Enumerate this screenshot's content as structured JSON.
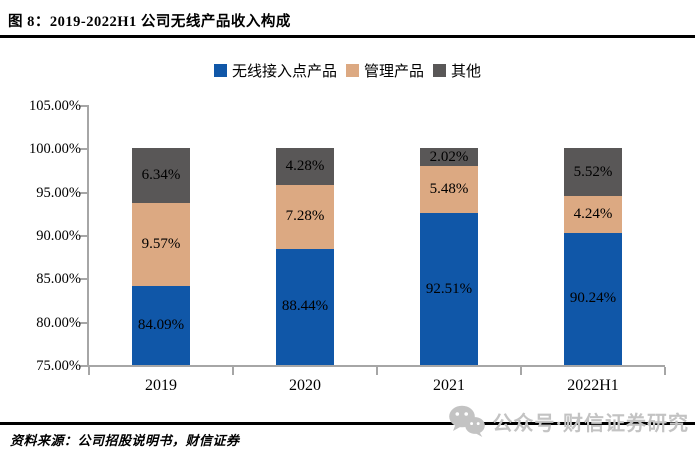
{
  "figure": {
    "title": "图 8：2019-2022H1 公司无线产品收入构成",
    "source": "资料来源：公司招股说明书，财信证券",
    "watermark": {
      "icon": "wechat-icon",
      "text": "公众号·财信证券研究",
      "color": "#c3c3c3"
    }
  },
  "chart_data": {
    "type": "bar",
    "stacked": true,
    "title": "2019-2022H1 公司无线产品收入构成",
    "categories": [
      "2019",
      "2020",
      "2021",
      "2022H1"
    ],
    "series": [
      {
        "name": "无线接入点产品",
        "color": "#1057A8",
        "values": [
          84.09,
          88.44,
          92.51,
          90.24
        ]
      },
      {
        "name": "管理产品",
        "color": "#DCA982",
        "values": [
          9.57,
          7.28,
          5.48,
          4.24
        ]
      },
      {
        "name": "其他",
        "color": "#595757",
        "values": [
          6.34,
          4.28,
          2.02,
          5.52
        ]
      }
    ],
    "value_labels": [
      [
        "84.09%",
        "88.44%",
        "92.51%",
        "90.24%"
      ],
      [
        "9.57%",
        "7.28%",
        "5.48%",
        "4.24%"
      ],
      [
        "6.34%",
        "4.28%",
        "2.02%",
        "5.52%"
      ]
    ],
    "ylim": [
      75,
      105
    ],
    "y_ticks": [
      "105.00%",
      "100.00%",
      "95.00%",
      "90.00%",
      "85.00%",
      "80.00%",
      "75.00%"
    ],
    "grid": false,
    "legend_position": "top",
    "axis_color": "#a6a6a6"
  }
}
